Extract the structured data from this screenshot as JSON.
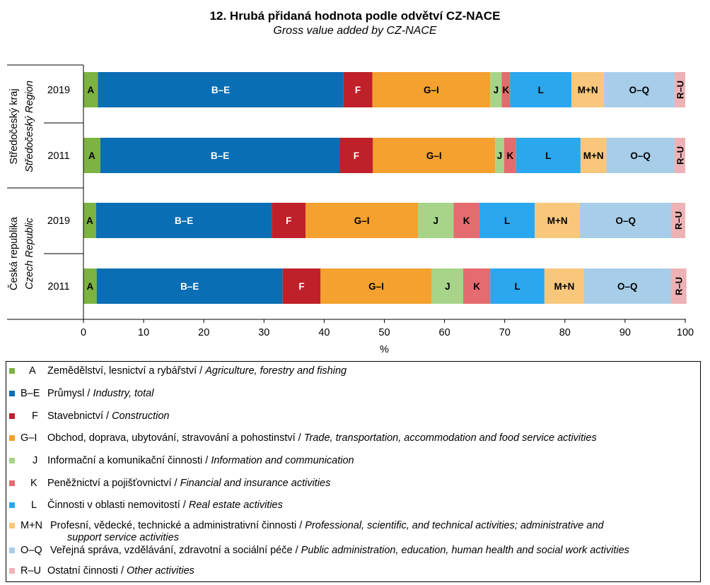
{
  "title": "12. Hrubá přidaná hodnota podle odvětví CZ-NACE",
  "subtitle": "Gross value added by CZ-NACE",
  "chart_data": {
    "type": "bar",
    "orientation": "horizontal-stacked-100",
    "title": "12. Hrubá přidaná hodnota podle odvětví CZ-NACE",
    "subtitle": "Gross value added by CZ-NACE",
    "xlabel": "%",
    "xlim": [
      0,
      100
    ],
    "xticks": [
      0,
      10,
      20,
      30,
      40,
      50,
      60,
      70,
      80,
      90,
      100
    ],
    "groups": [
      {
        "label_cz": "Středočeský kraj",
        "label_en": "Středočeský Region",
        "years": [
          "2019",
          "2011"
        ]
      },
      {
        "label_cz": "Česká republika",
        "label_en": "Czech Republic",
        "years": [
          "2019",
          "2011"
        ]
      }
    ],
    "categories": [
      "Středočeský kraj 2019",
      "Středočeský kraj 2011",
      "Česká republika 2019",
      "Česká republika 2011"
    ],
    "series": [
      {
        "name": "A",
        "color": "#7cb342",
        "values": [
          2.4,
          2.8,
          2.1,
          2.2
        ]
      },
      {
        "name": "B–E",
        "color": "#0a6eb4",
        "values": [
          40.8,
          39.8,
          29.2,
          30.9
        ]
      },
      {
        "name": "F",
        "color": "#c0202a",
        "values": [
          4.8,
          5.5,
          5.6,
          6.3
        ]
      },
      {
        "name": "G–I",
        "color": "#f4a12f",
        "values": [
          19.6,
          20.3,
          18.7,
          18.5
        ]
      },
      {
        "name": "J",
        "color": "#a6d488",
        "values": [
          1.9,
          1.5,
          5.9,
          5.2
        ]
      },
      {
        "name": "K",
        "color": "#e46b6f",
        "values": [
          1.4,
          2.0,
          4.3,
          4.5
        ]
      },
      {
        "name": "L",
        "color": "#2aa7ef",
        "values": [
          10.2,
          10.7,
          9.2,
          9.0
        ]
      },
      {
        "name": "M+N",
        "color": "#f9c77c",
        "values": [
          5.4,
          4.3,
          7.5,
          6.6
        ]
      },
      {
        "name": "O–Q",
        "color": "#a8cde9",
        "values": [
          11.7,
          11.3,
          15.2,
          14.4
        ]
      },
      {
        "name": "R–U",
        "color": "#edb2b5",
        "values": [
          1.8,
          1.8,
          2.3,
          2.6
        ]
      }
    ]
  },
  "legend": [
    {
      "code": "A",
      "text_cz": "Zemědělství,  lesnictví  a rybářství  /",
      "text_en": "Agriculture, forestry and fishing",
      "color": "#7cb342"
    },
    {
      "code": "B–E",
      "text_cz": "Průmysl /",
      "text_en": "Industry, total",
      "color": "#0a6eb4"
    },
    {
      "code": "F",
      "text_cz": "Stavebnictví  /",
      "text_en": "Construction",
      "color": "#c0202a"
    },
    {
      "code": "G–I",
      "text_cz": "Obchod, doprava,  ubytování,  stravování  a pohostinství  /",
      "text_en": "Trade, transportation, accommodation and food service activities",
      "color": "#f4a12f"
    },
    {
      "code": "J",
      "text_cz": "Informační a komunikační činnosti /",
      "text_en": "Information and communication",
      "color": "#a6d488"
    },
    {
      "code": "K",
      "text_cz": "Peněžnictví a pojišťovnictví  /",
      "text_en": "Financial and insurance activities",
      "color": "#e46b6f"
    },
    {
      "code": "L",
      "text_cz": "Činnosti v oblasti nemovitostí  /",
      "text_en": "Real estate activities",
      "color": "#2aa7ef"
    },
    {
      "code": "M+N",
      "text_cz": "Profesní, vědecké, technické a administrativní činnosti /",
      "text_en": "Professional, scientific, and technical activities; administrative and",
      "text_en_cont": "support service activities",
      "color": "#f9c77c"
    },
    {
      "code": "O–Q",
      "text_cz": "Veřejná správa, vzdělávání,  zdravotní a sociální péče /",
      "text_en": "Public administration, education, human health and social work activities",
      "color": "#a8cde9"
    },
    {
      "code": "R–U",
      "text_cz": "Ostatní činnosti /",
      "text_en": "Other activities",
      "color": "#edb2b5"
    }
  ]
}
